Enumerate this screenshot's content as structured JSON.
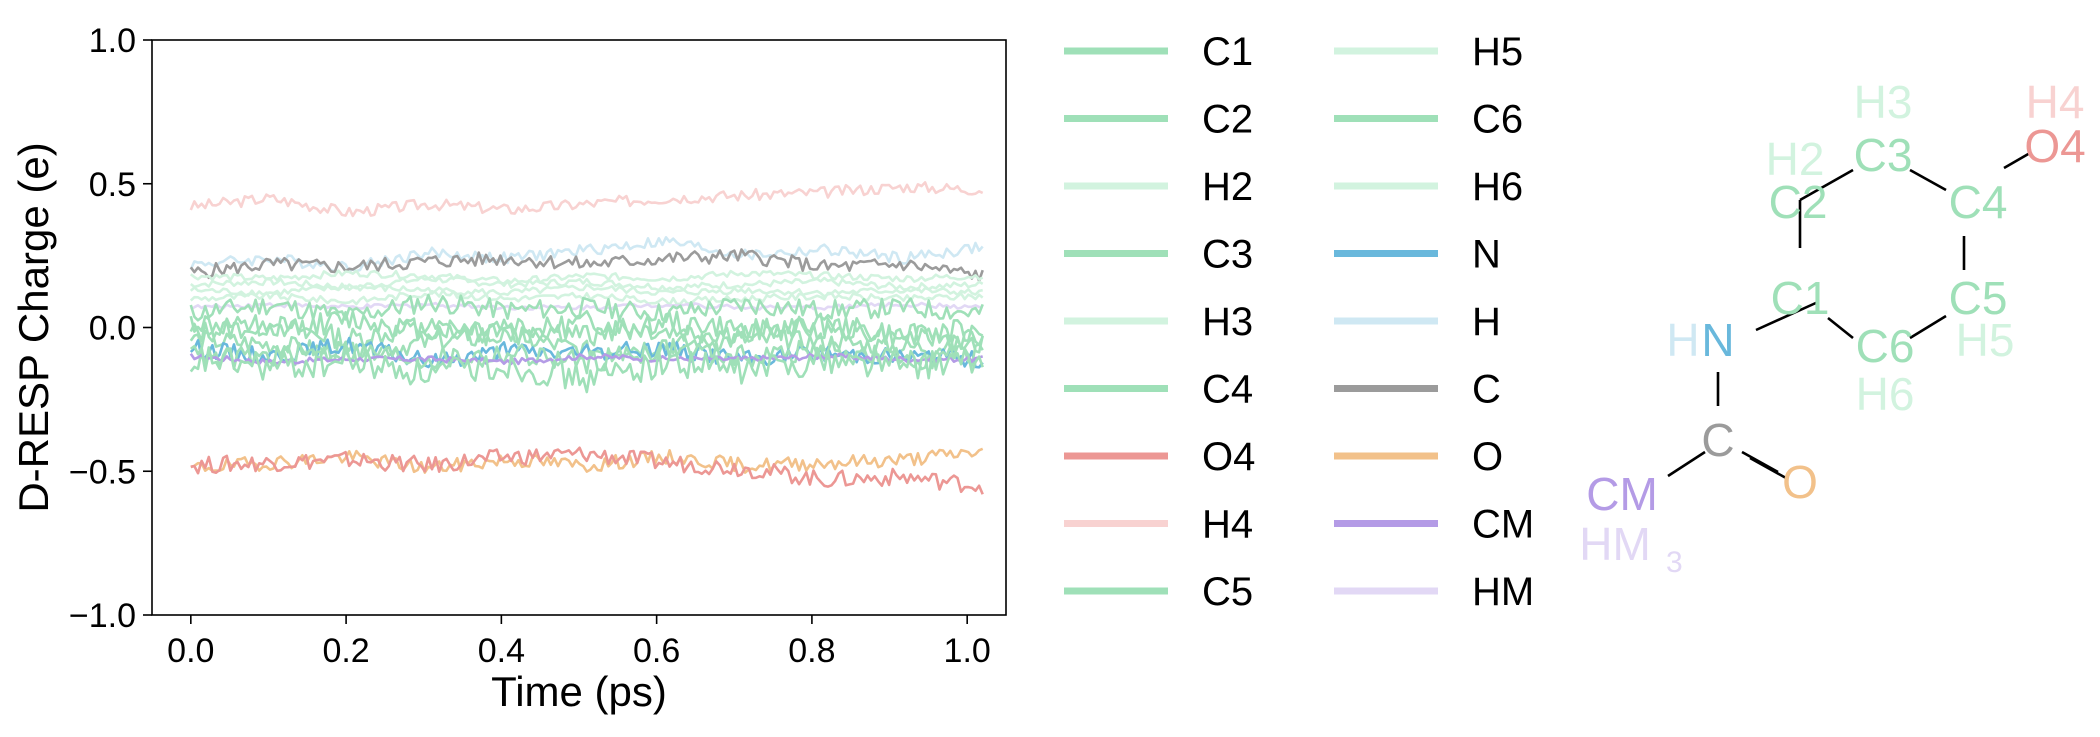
{
  "chart_data": {
    "type": "line",
    "xlabel": "Time (ps)",
    "ylabel": "D-RESP Charge (e)",
    "xlim": [
      -0.05,
      1.05
    ],
    "ylim": [
      -1.0,
      1.0
    ],
    "x_ticks": [
      "0.0",
      "0.2",
      "0.4",
      "0.6",
      "0.8",
      "1.0"
    ],
    "y_ticks": [
      "−1.0",
      "−0.5",
      "0.0",
      "0.5",
      "1.0"
    ],
    "grid": false,
    "legend_position": "right of plot, two columns",
    "x_range": [
      0.0,
      1.02
    ],
    "series": [
      {
        "name": "C1",
        "color": "#9fe0b8",
        "values": [
          -0.04,
          -0.06,
          -0.09,
          -0.05,
          -0.03,
          -0.08,
          -0.06,
          -0.04,
          -0.05,
          -0.07,
          -0.06
        ]
      },
      {
        "name": "C2",
        "color": "#9fe0b8",
        "values": [
          -0.1,
          -0.14,
          -0.12,
          -0.16,
          -0.13,
          -0.18,
          -0.12,
          -0.15,
          -0.11,
          -0.13,
          -0.12
        ]
      },
      {
        "name": "H2",
        "color": "#d2f3df",
        "values": [
          0.13,
          0.12,
          0.14,
          0.13,
          0.12,
          0.14,
          0.12,
          0.13,
          0.12,
          0.13,
          0.12
        ]
      },
      {
        "name": "C3",
        "color": "#9fe0b8",
        "values": [
          0.02,
          -0.02,
          0.03,
          -0.01,
          0.01,
          -0.03,
          0.02,
          -0.01,
          0.0,
          -0.02,
          -0.01
        ]
      },
      {
        "name": "H3",
        "color": "#d2f3df",
        "values": [
          0.15,
          0.16,
          0.14,
          0.17,
          0.15,
          0.16,
          0.14,
          0.15,
          0.16,
          0.14,
          0.15
        ]
      },
      {
        "name": "C4",
        "color": "#9fe0b8",
        "values": [
          0.05,
          0.08,
          0.04,
          0.09,
          0.06,
          0.07,
          0.05,
          0.08,
          0.06,
          0.07,
          0.05
        ]
      },
      {
        "name": "O4",
        "color": "#ec9794",
        "values": [
          -0.48,
          -0.47,
          -0.46,
          -0.48,
          -0.45,
          -0.44,
          -0.47,
          -0.49,
          -0.53,
          -0.52,
          -0.55
        ]
      },
      {
        "name": "H4",
        "color": "#f8d2d1",
        "values": [
          0.42,
          0.45,
          0.4,
          0.43,
          0.41,
          0.43,
          0.45,
          0.46,
          0.47,
          0.49,
          0.48
        ]
      },
      {
        "name": "C5",
        "color": "#9fe0b8",
        "values": [
          -0.12,
          -0.1,
          -0.08,
          -0.11,
          -0.09,
          -0.12,
          -0.07,
          -0.1,
          -0.08,
          -0.11,
          -0.09
        ]
      },
      {
        "name": "H5",
        "color": "#d2f3df",
        "values": [
          0.18,
          0.17,
          0.19,
          0.18,
          0.16,
          0.18,
          0.17,
          0.19,
          0.18,
          0.17,
          0.18
        ]
      },
      {
        "name": "C6",
        "color": "#9fe0b8",
        "values": [
          -0.02,
          0.01,
          -0.04,
          0.0,
          -0.03,
          0.02,
          -0.01,
          -0.02,
          0.01,
          -0.03,
          -0.04
        ]
      },
      {
        "name": "H6",
        "color": "#d2f3df",
        "values": [
          0.1,
          0.11,
          0.09,
          0.12,
          0.1,
          0.11,
          0.09,
          0.1,
          0.11,
          0.1,
          0.11
        ]
      },
      {
        "name": "N",
        "color": "#69b8dc",
        "values": [
          -0.07,
          -0.1,
          -0.06,
          -0.12,
          -0.08,
          -0.09,
          -0.07,
          -0.11,
          -0.09,
          -0.1,
          -0.11
        ]
      },
      {
        "name": "H",
        "color": "#cfe8f3",
        "values": [
          0.22,
          0.24,
          0.21,
          0.26,
          0.24,
          0.27,
          0.3,
          0.25,
          0.27,
          0.24,
          0.28
        ]
      },
      {
        "name": "C",
        "color": "#9b9b9b",
        "values": [
          0.19,
          0.22,
          0.21,
          0.23,
          0.24,
          0.22,
          0.24,
          0.25,
          0.21,
          0.22,
          0.18
        ]
      },
      {
        "name": "O",
        "color": "#f2c18a",
        "values": [
          -0.49,
          -0.47,
          -0.45,
          -0.49,
          -0.46,
          -0.48,
          -0.45,
          -0.48,
          -0.47,
          -0.46,
          -0.43
        ]
      },
      {
        "name": "CM",
        "color": "#b49be6",
        "values": [
          -0.1,
          -0.12,
          -0.11,
          -0.11,
          -0.12,
          -0.1,
          -0.11,
          -0.11,
          -0.1,
          -0.11,
          -0.11
        ]
      },
      {
        "name": "HM",
        "color": "#e2d8f5",
        "values": [
          0.07,
          0.08,
          0.07,
          0.08,
          0.07,
          0.07,
          0.08,
          0.07,
          0.07,
          0.08,
          0.07
        ]
      }
    ]
  },
  "molecule": {
    "labels": [
      "H3",
      "H4",
      "H2",
      "C3",
      "O4",
      "C2",
      "C4",
      "C1",
      "C5",
      "H",
      "N",
      "C6",
      "H5",
      "H6",
      "C",
      "O",
      "CM",
      "HM",
      "3"
    ]
  }
}
